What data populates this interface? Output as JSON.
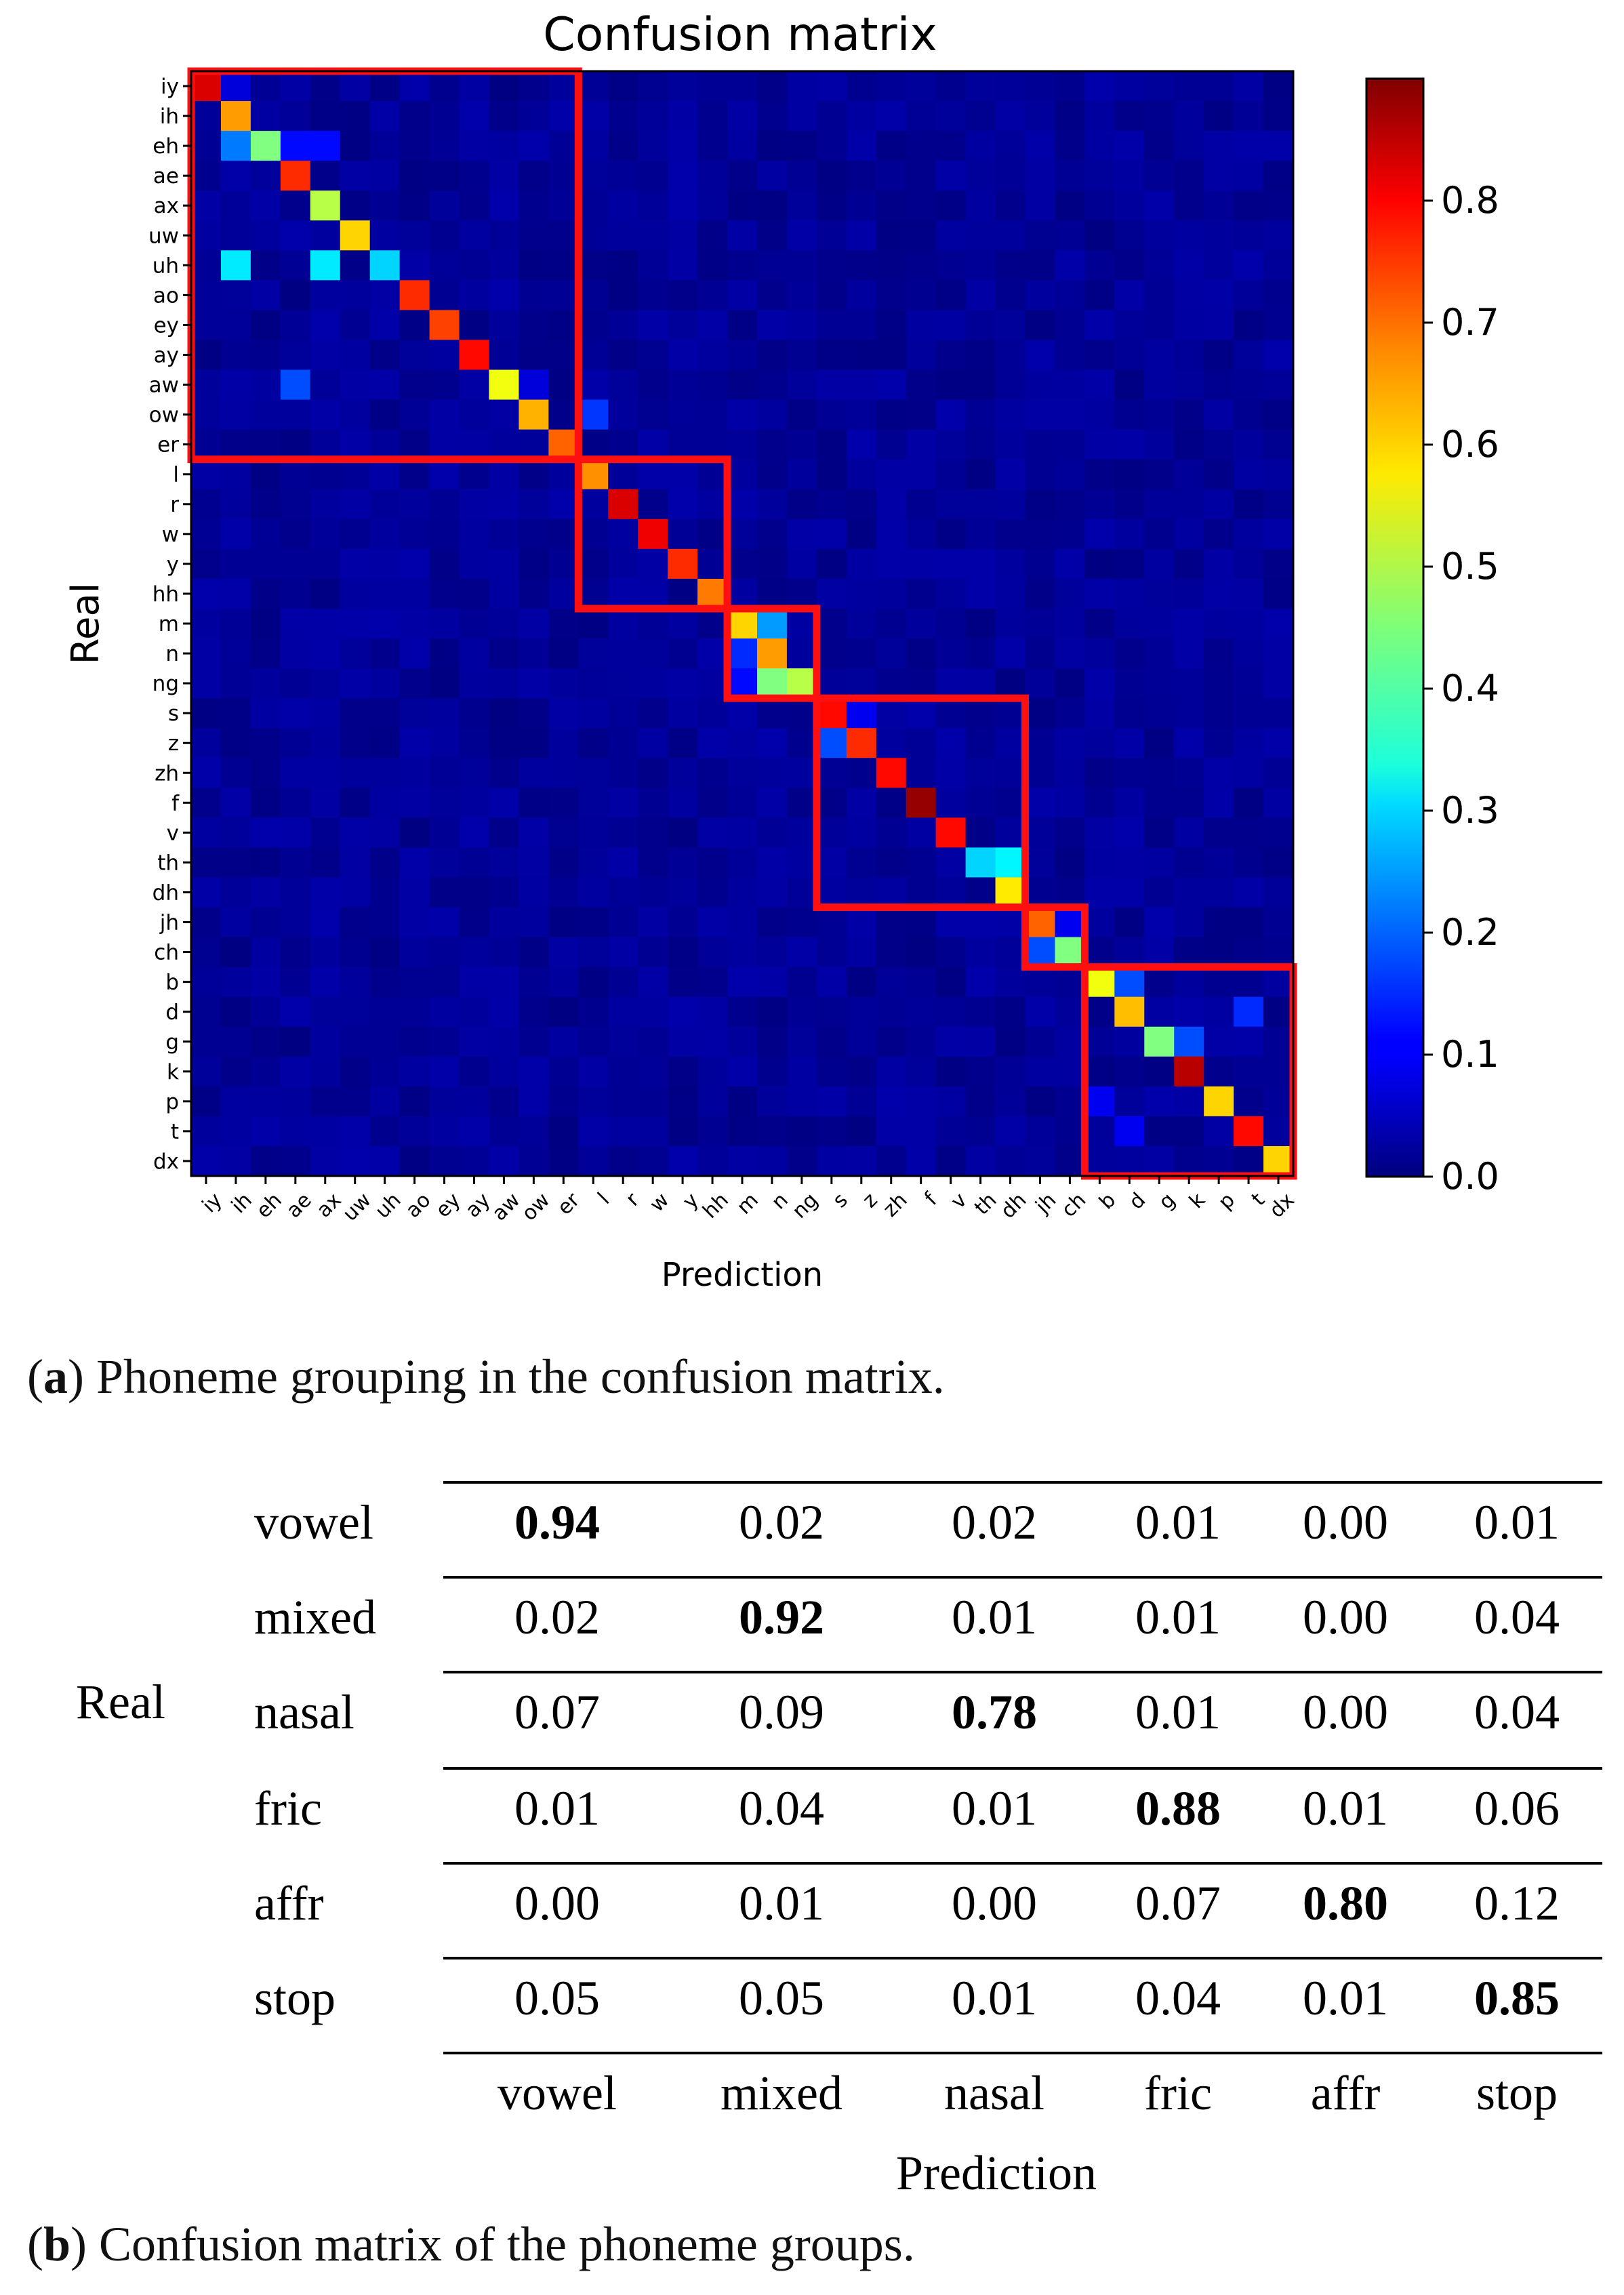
{
  "chart_data": [
    {
      "type": "heatmap",
      "title": "Confusion matrix",
      "xlabel": "Prediction",
      "ylabel": "Real",
      "labels": [
        "iy",
        "ih",
        "eh",
        "ae",
        "ax",
        "uw",
        "uh",
        "ao",
        "ey",
        "ay",
        "aw",
        "ow",
        "er",
        "l",
        "r",
        "w",
        "y",
        "hh",
        "m",
        "n",
        "ng",
        "s",
        "z",
        "zh",
        "f",
        "v",
        "th",
        "dh",
        "jh",
        "ch",
        "b",
        "d",
        "g",
        "k",
        "p",
        "t",
        "dx"
      ],
      "colorbar": {
        "ticks": [
          "0.0",
          "0.1",
          "0.2",
          "0.3",
          "0.4",
          "0.5",
          "0.6",
          "0.7",
          "0.8"
        ],
        "vmin": 0.0,
        "vmax": 0.9,
        "colormap": "jet"
      },
      "diagonal": [
        0.82,
        0.65,
        0.45,
        0.75,
        0.5,
        0.6,
        0.3,
        0.75,
        0.73,
        0.78,
        0.55,
        0.63,
        0.7,
        0.66,
        0.82,
        0.8,
        0.75,
        0.68,
        0.6,
        0.65,
        0.5,
        0.78,
        0.75,
        0.78,
        0.88,
        0.78,
        0.3,
        0.58,
        0.7,
        0.45,
        0.55,
        0.62,
        0.45,
        0.85,
        0.6,
        0.78,
        0.6
      ],
      "off_diagonal": [
        {
          "row": "iy",
          "col": "ih",
          "value": 0.08
        },
        {
          "row": "ih",
          "col": "eh",
          "value": 0.03
        },
        {
          "row": "eh",
          "col": "ih",
          "value": 0.22
        },
        {
          "row": "eh",
          "col": "ae",
          "value": 0.12
        },
        {
          "row": "eh",
          "col": "ax",
          "value": 0.12
        },
        {
          "row": "uh",
          "col": "ih",
          "value": 0.32
        },
        {
          "row": "uh",
          "col": "ax",
          "value": 0.32
        },
        {
          "row": "aw",
          "col": "ae",
          "value": 0.18
        },
        {
          "row": "ow",
          "col": "l",
          "value": 0.16
        },
        {
          "row": "aw",
          "col": "ow",
          "value": 0.08
        },
        {
          "row": "th",
          "col": "dh",
          "value": 0.33
        },
        {
          "row": "m",
          "col": "n",
          "value": 0.25
        },
        {
          "row": "n",
          "col": "m",
          "value": 0.15
        },
        {
          "row": "ng",
          "col": "m",
          "value": 0.12
        },
        {
          "row": "ng",
          "col": "n",
          "value": 0.45
        },
        {
          "row": "s",
          "col": "z",
          "value": 0.1
        },
        {
          "row": "z",
          "col": "s",
          "value": 0.18
        },
        {
          "row": "jh",
          "col": "ch",
          "value": 0.1
        },
        {
          "row": "ch",
          "col": "jh",
          "value": 0.18
        },
        {
          "row": "b",
          "col": "d",
          "value": 0.18
        },
        {
          "row": "d",
          "col": "t",
          "value": 0.15
        },
        {
          "row": "g",
          "col": "k",
          "value": 0.18
        },
        {
          "row": "p",
          "col": "b",
          "value": 0.1
        },
        {
          "row": "t",
          "col": "d",
          "value": 0.1
        }
      ],
      "group_boxes": [
        {
          "name": "vowel",
          "from": "iy",
          "to": "er"
        },
        {
          "name": "mixed",
          "from": "l",
          "to": "hh"
        },
        {
          "name": "nasal",
          "from": "m",
          "to": "ng"
        },
        {
          "name": "fric",
          "from": "s",
          "to": "dh"
        },
        {
          "name": "affr",
          "from": "jh",
          "to": "ch"
        },
        {
          "name": "stop",
          "from": "b",
          "to": "dx"
        }
      ]
    },
    {
      "type": "table",
      "row_axis_label": "Real",
      "col_axis_label": "Prediction",
      "rows": [
        "vowel",
        "mixed",
        "nasal",
        "fric",
        "affr",
        "stop"
      ],
      "columns": [
        "vowel",
        "mixed",
        "nasal",
        "fric",
        "affr",
        "stop"
      ],
      "values": [
        [
          "0.94",
          "0.02",
          "0.02",
          "0.01",
          "0.00",
          "0.01"
        ],
        [
          "0.02",
          "0.92",
          "0.01",
          "0.01",
          "0.00",
          "0.04"
        ],
        [
          "0.07",
          "0.09",
          "0.78",
          "0.01",
          "0.00",
          "0.04"
        ],
        [
          "0.01",
          "0.04",
          "0.01",
          "0.88",
          "0.01",
          "0.06"
        ],
        [
          "0.00",
          "0.01",
          "0.00",
          "0.07",
          "0.80",
          "0.12"
        ],
        [
          "0.05",
          "0.05",
          "0.01",
          "0.04",
          "0.01",
          "0.85"
        ]
      ]
    }
  ],
  "captions": {
    "a_label": "a",
    "a_text": ") Phoneme grouping in the confusion matrix.",
    "b_label": "b",
    "b_text": ") Confusion matrix of the phoneme groups."
  }
}
